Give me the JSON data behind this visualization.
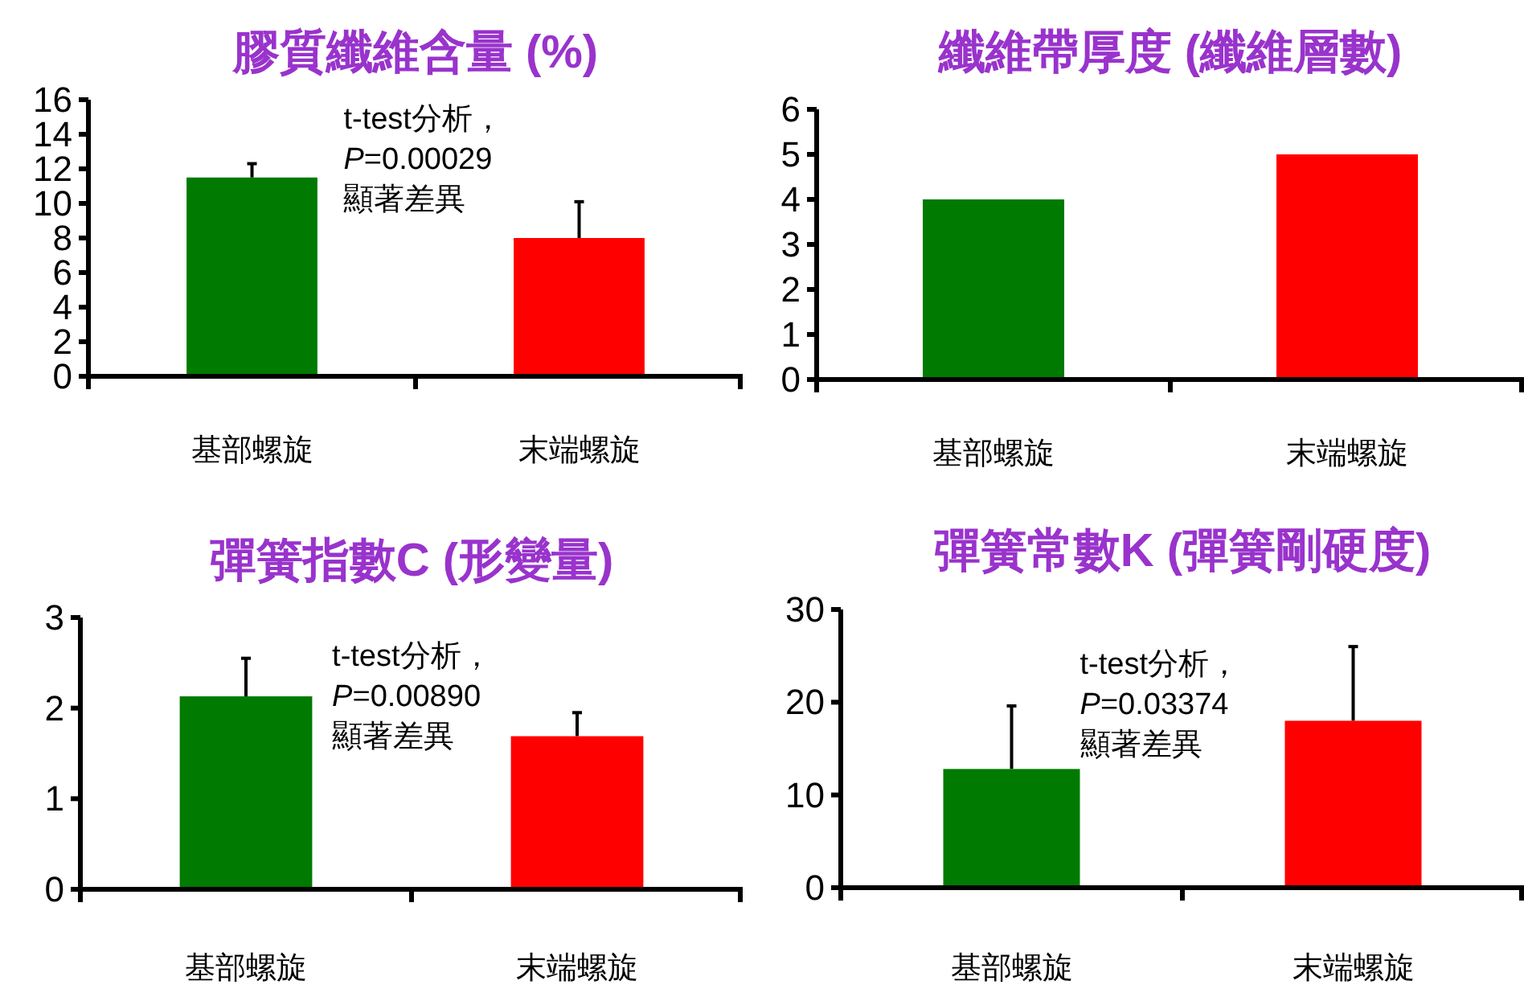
{
  "chart_data": [
    {
      "type": "bar",
      "title": "膠質纖維含量 (%)",
      "categories": [
        "基部螺旋",
        "末端螺旋"
      ],
      "values": [
        11.5,
        8
      ],
      "colors": [
        "#007a00",
        "#ff0000"
      ],
      "errors": [
        0.8,
        2.1
      ],
      "ylim": [
        0,
        16
      ],
      "yticks": [
        0,
        2,
        4,
        6,
        8,
        10,
        12,
        14,
        16
      ],
      "annotations": [
        "t-test分析，",
        "*P*=0.00029",
        "顯著差異"
      ]
    },
    {
      "type": "bar",
      "title": "纖維帶厚度 (纖維層數)",
      "categories": [
        "基部螺旋",
        "末端螺旋"
      ],
      "values": [
        4,
        5
      ],
      "colors": [
        "#007a00",
        "#ff0000"
      ],
      "ylim": [
        0,
        6
      ],
      "yticks": [
        0,
        1,
        2,
        3,
        4,
        5,
        6
      ]
    },
    {
      "type": "bar",
      "title": "彈簧指數C (形變量)",
      "categories": [
        "基部螺旋",
        "末端螺旋"
      ],
      "values": [
        2.13,
        1.69
      ],
      "colors": [
        "#007a00",
        "#ff0000"
      ],
      "errors": [
        0.42,
        0.26
      ],
      "ylim": [
        0,
        3
      ],
      "yticks": [
        0,
        1,
        2,
        3
      ],
      "annotations": [
        "t-test分析，",
        "*P*=0.00890",
        "顯著差異"
      ]
    },
    {
      "type": "bar",
      "title": "彈簧常數K (彈簧剛硬度)",
      "categories": [
        "基部螺旋",
        "末端螺旋"
      ],
      "values": [
        12.8,
        18
      ],
      "colors": [
        "#007a00",
        "#ff0000"
      ],
      "errors": [
        6.8,
        8
      ],
      "ylim": [
        0,
        30
      ],
      "yticks": [
        0,
        10,
        20,
        30
      ],
      "annotations": [
        "t-test分析，",
        "*P*=0.03374",
        "顯著差異"
      ]
    }
  ]
}
